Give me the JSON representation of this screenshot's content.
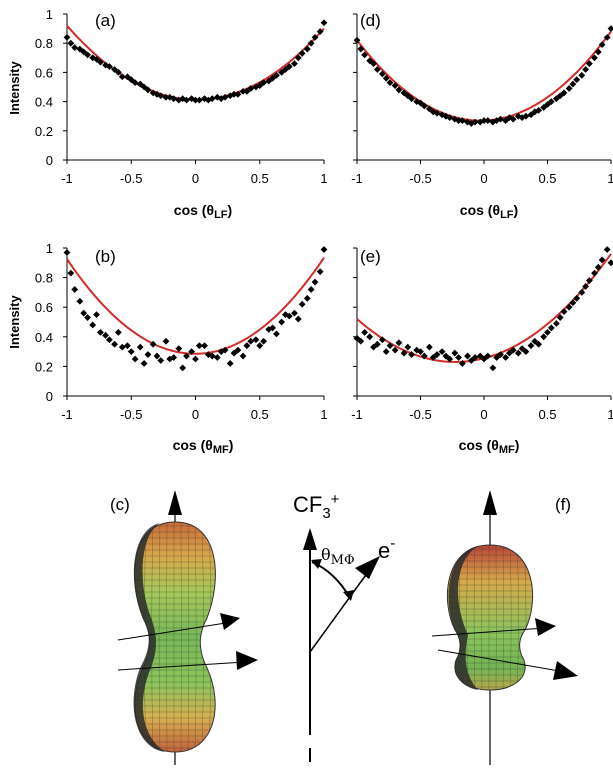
{
  "chart_data": [
    {
      "id": "a",
      "type": "scatter",
      "panel_label": "(a)",
      "ylabel": "Intensity",
      "xlabel_prefix": "cos (",
      "xlabel_symbol": "θ",
      "xlabel_sub": "LF",
      "xlabel_suffix": ")",
      "xlim": [
        -1,
        1
      ],
      "ylim": [
        0,
        1
      ],
      "xticks": [
        "-1",
        "-0.5",
        "0",
        "0.5",
        "1"
      ],
      "yticks": [
        "0",
        "0.2",
        "0.4",
        "0.6",
        "0.8",
        "1"
      ],
      "series": [
        {
          "type": "scatter",
          "color": "#000000",
          "x": [
            -1,
            -0.97,
            -0.94,
            -0.9,
            -0.87,
            -0.84,
            -0.8,
            -0.77,
            -0.74,
            -0.7,
            -0.67,
            -0.63,
            -0.6,
            -0.57,
            -0.53,
            -0.5,
            -0.47,
            -0.43,
            -0.4,
            -0.37,
            -0.33,
            -0.3,
            -0.27,
            -0.23,
            -0.2,
            -0.17,
            -0.13,
            -0.1,
            -0.07,
            -0.03,
            0,
            0.03,
            0.07,
            0.1,
            0.13,
            0.17,
            0.2,
            0.23,
            0.27,
            0.3,
            0.33,
            0.37,
            0.4,
            0.43,
            0.47,
            0.5,
            0.53,
            0.57,
            0.6,
            0.63,
            0.67,
            0.7,
            0.73,
            0.77,
            0.8,
            0.83,
            0.87,
            0.9,
            0.93,
            0.97,
            1
          ],
          "y": [
            0.84,
            0.8,
            0.77,
            0.76,
            0.74,
            0.72,
            0.7,
            0.69,
            0.67,
            0.65,
            0.64,
            0.62,
            0.6,
            0.57,
            0.57,
            0.55,
            0.53,
            0.52,
            0.5,
            0.48,
            0.46,
            0.45,
            0.44,
            0.43,
            0.43,
            0.42,
            0.41,
            0.42,
            0.41,
            0.42,
            0.41,
            0.41,
            0.42,
            0.41,
            0.42,
            0.43,
            0.42,
            0.43,
            0.44,
            0.45,
            0.45,
            0.47,
            0.47,
            0.49,
            0.5,
            0.51,
            0.53,
            0.54,
            0.56,
            0.58,
            0.6,
            0.62,
            0.64,
            0.66,
            0.7,
            0.73,
            0.76,
            0.8,
            0.84,
            0.88,
            0.94
          ]
        },
        {
          "type": "line",
          "color": "#d42a2a",
          "model": {
            "a": 0.413,
            "b": 0.497,
            "c": -0.01
          }
        }
      ]
    },
    {
      "id": "d",
      "type": "scatter",
      "panel_label": "(d)",
      "xlabel_prefix": "cos (",
      "xlabel_symbol": "θ",
      "xlabel_sub": "LF",
      "xlabel_suffix": ")",
      "xlim": [
        -1,
        1
      ],
      "ylim": [
        0,
        1
      ],
      "xticks": [
        "-1",
        "-0.5",
        "0",
        "0.5",
        "1"
      ],
      "series": [
        {
          "type": "scatter",
          "color": "#000000",
          "x": [
            -1,
            -0.97,
            -0.94,
            -0.9,
            -0.87,
            -0.84,
            -0.8,
            -0.77,
            -0.74,
            -0.7,
            -0.67,
            -0.63,
            -0.6,
            -0.57,
            -0.53,
            -0.5,
            -0.47,
            -0.43,
            -0.4,
            -0.37,
            -0.33,
            -0.3,
            -0.27,
            -0.23,
            -0.2,
            -0.17,
            -0.13,
            -0.1,
            -0.07,
            -0.03,
            0,
            0.03,
            0.07,
            0.1,
            0.13,
            0.17,
            0.2,
            0.23,
            0.27,
            0.3,
            0.33,
            0.37,
            0.4,
            0.43,
            0.47,
            0.5,
            0.53,
            0.57,
            0.6,
            0.63,
            0.67,
            0.7,
            0.73,
            0.77,
            0.8,
            0.83,
            0.87,
            0.9,
            0.93,
            0.97,
            1
          ],
          "y": [
            0.82,
            0.76,
            0.72,
            0.68,
            0.66,
            0.62,
            0.59,
            0.56,
            0.53,
            0.51,
            0.48,
            0.46,
            0.44,
            0.42,
            0.4,
            0.39,
            0.37,
            0.35,
            0.33,
            0.32,
            0.31,
            0.3,
            0.29,
            0.28,
            0.27,
            0.27,
            0.26,
            0.25,
            0.26,
            0.26,
            0.27,
            0.27,
            0.26,
            0.27,
            0.28,
            0.27,
            0.29,
            0.28,
            0.3,
            0.29,
            0.3,
            0.31,
            0.33,
            0.34,
            0.36,
            0.38,
            0.4,
            0.42,
            0.44,
            0.46,
            0.49,
            0.52,
            0.55,
            0.58,
            0.62,
            0.66,
            0.7,
            0.74,
            0.79,
            0.84,
            0.9
          ]
        },
        {
          "type": "line",
          "color": "#d42a2a",
          "model": {
            "a": 0.27,
            "b": 0.58,
            "c": 0.03
          }
        }
      ]
    },
    {
      "id": "b",
      "type": "scatter",
      "panel_label": "(b)",
      "ylabel": "Intensity",
      "xlabel_prefix": "cos (",
      "xlabel_symbol": "θ",
      "xlabel_sub": "MF",
      "xlabel_suffix": ")",
      "xlim": [
        -1,
        1
      ],
      "ylim": [
        0,
        1
      ],
      "xticks": [
        "-1",
        "-0.5",
        "0",
        "0.5",
        "1"
      ],
      "yticks": [
        "0",
        "0.2",
        "0.4",
        "0.6",
        "0.8",
        "1"
      ],
      "series": [
        {
          "type": "scatter",
          "color": "#000000",
          "x": [
            -1,
            -0.97,
            -0.94,
            -0.9,
            -0.87,
            -0.84,
            -0.8,
            -0.77,
            -0.74,
            -0.7,
            -0.67,
            -0.63,
            -0.6,
            -0.57,
            -0.53,
            -0.5,
            -0.47,
            -0.43,
            -0.4,
            -0.37,
            -0.33,
            -0.3,
            -0.27,
            -0.23,
            -0.2,
            -0.17,
            -0.13,
            -0.1,
            -0.07,
            -0.03,
            0,
            0.03,
            0.07,
            0.1,
            0.13,
            0.17,
            0.2,
            0.23,
            0.27,
            0.3,
            0.33,
            0.37,
            0.4,
            0.43,
            0.47,
            0.5,
            0.53,
            0.57,
            0.6,
            0.63,
            0.67,
            0.7,
            0.73,
            0.77,
            0.8,
            0.83,
            0.87,
            0.9,
            0.93,
            0.97,
            1
          ],
          "y": [
            0.97,
            0.83,
            0.72,
            0.64,
            0.56,
            0.53,
            0.48,
            0.55,
            0.43,
            0.41,
            0.38,
            0.35,
            0.43,
            0.33,
            0.34,
            0.3,
            0.25,
            0.33,
            0.22,
            0.28,
            0.35,
            0.27,
            0.24,
            0.37,
            0.25,
            0.26,
            0.32,
            0.19,
            0.27,
            0.3,
            0.25,
            0.34,
            0.34,
            0.28,
            0.27,
            0.26,
            0.3,
            0.31,
            0.22,
            0.29,
            0.31,
            0.27,
            0.34,
            0.37,
            0.38,
            0.34,
            0.37,
            0.45,
            0.46,
            0.42,
            0.5,
            0.55,
            0.54,
            0.56,
            0.52,
            0.62,
            0.66,
            0.72,
            0.77,
            0.84,
            0.99
          ]
        },
        {
          "type": "line",
          "color": "#d42a2a",
          "model": {
            "a": 0.285,
            "b": 0.645,
            "c": 0.005
          }
        }
      ]
    },
    {
      "id": "e",
      "type": "scatter",
      "panel_label": "(e)",
      "xlabel_prefix": "cos (",
      "xlabel_symbol": "θ",
      "xlabel_sub": "MF",
      "xlabel_suffix": ")",
      "xlim": [
        -1,
        1
      ],
      "ylim": [
        0,
        1
      ],
      "xticks": [
        "-1",
        "-0.5",
        "0",
        "0.5",
        "1"
      ],
      "series": [
        {
          "type": "scatter",
          "color": "#000000",
          "x": [
            -1,
            -0.97,
            -0.94,
            -0.9,
            -0.87,
            -0.84,
            -0.8,
            -0.77,
            -0.74,
            -0.7,
            -0.67,
            -0.63,
            -0.6,
            -0.57,
            -0.53,
            -0.5,
            -0.47,
            -0.43,
            -0.4,
            -0.37,
            -0.33,
            -0.3,
            -0.27,
            -0.23,
            -0.2,
            -0.17,
            -0.13,
            -0.1,
            -0.07,
            -0.03,
            0,
            0.03,
            0.07,
            0.1,
            0.13,
            0.17,
            0.2,
            0.23,
            0.27,
            0.3,
            0.33,
            0.37,
            0.4,
            0.43,
            0.47,
            0.5,
            0.53,
            0.57,
            0.6,
            0.63,
            0.67,
            0.7,
            0.73,
            0.77,
            0.8,
            0.83,
            0.87,
            0.9,
            0.93,
            0.97,
            1
          ],
          "y": [
            0.39,
            0.37,
            0.43,
            0.4,
            0.33,
            0.35,
            0.38,
            0.3,
            0.34,
            0.31,
            0.36,
            0.29,
            0.33,
            0.28,
            0.31,
            0.3,
            0.27,
            0.33,
            0.26,
            0.28,
            0.3,
            0.27,
            0.25,
            0.29,
            0.26,
            0.22,
            0.27,
            0.24,
            0.26,
            0.27,
            0.25,
            0.27,
            0.19,
            0.26,
            0.28,
            0.26,
            0.29,
            0.31,
            0.29,
            0.32,
            0.3,
            0.34,
            0.37,
            0.35,
            0.4,
            0.43,
            0.46,
            0.49,
            0.53,
            0.57,
            0.6,
            0.63,
            0.66,
            0.7,
            0.74,
            0.78,
            0.83,
            0.87,
            0.92,
            0.99,
            0.9
          ]
        },
        {
          "type": "line",
          "color": "#d42a2a",
          "model": {
            "a": 0.255,
            "b": 0.485,
            "c": 0.22
          }
        }
      ]
    }
  ],
  "diagram": {
    "label_c": "(c)",
    "label_f": "(f)",
    "ion_label": "CF",
    "ion_sub": "3",
    "ion_sup": "+",
    "electron_label": "e",
    "electron_sup": "-",
    "angle_symbol": "θ",
    "angle_sub": "MΦ"
  }
}
